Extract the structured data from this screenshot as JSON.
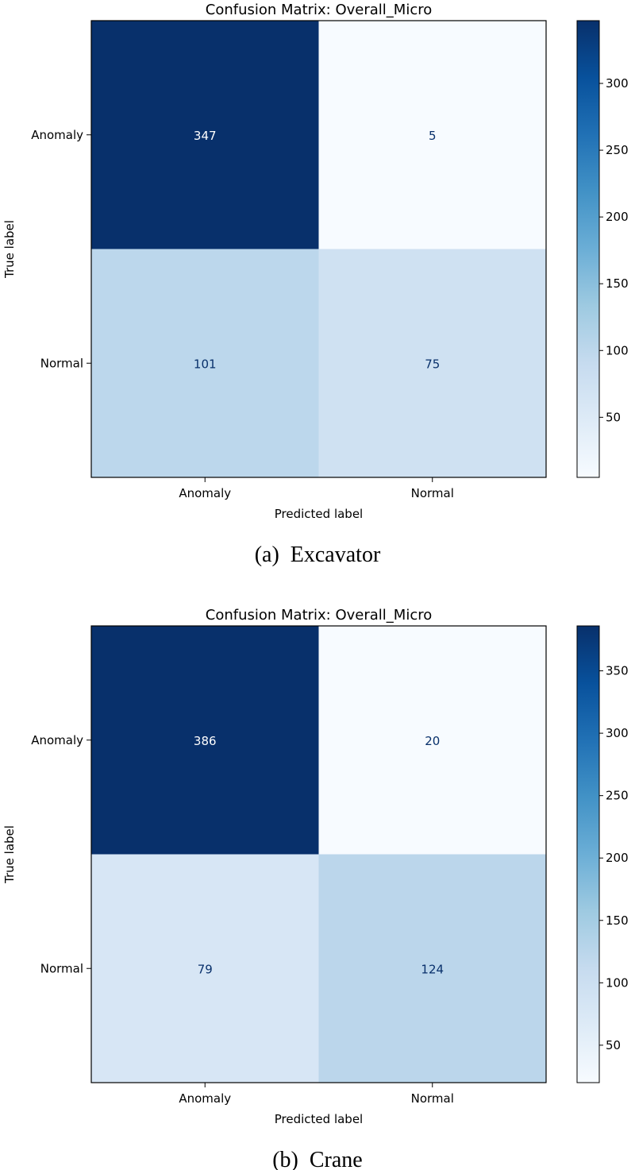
{
  "chart_data": [
    {
      "type": "heatmap",
      "title": "Confusion Matrix: Overall_Micro",
      "xlabel": "Predicted label",
      "ylabel": "True label",
      "x_categories": [
        "Anomaly",
        "Normal"
      ],
      "y_categories": [
        "Anomaly",
        "Normal"
      ],
      "values": [
        [
          347,
          5
        ],
        [
          101,
          75
        ]
      ],
      "colormap": "Blues",
      "colorbar_range": [
        5,
        347
      ],
      "colorbar_ticks": [
        50,
        100,
        150,
        200,
        250,
        300
      ],
      "caption": "(a)  Excavator",
      "grid": false
    },
    {
      "type": "heatmap",
      "title": "Confusion Matrix: Overall_Micro",
      "xlabel": "Predicted label",
      "ylabel": "True label",
      "x_categories": [
        "Anomaly",
        "Normal"
      ],
      "y_categories": [
        "Anomaly",
        "Normal"
      ],
      "values": [
        [
          386,
          20
        ],
        [
          79,
          124
        ]
      ],
      "colormap": "Blues",
      "colorbar_range": [
        20,
        386
      ],
      "colorbar_ticks": [
        50,
        100,
        150,
        200,
        250,
        300,
        350
      ],
      "caption": "(b)  Crane",
      "grid": false
    }
  ]
}
